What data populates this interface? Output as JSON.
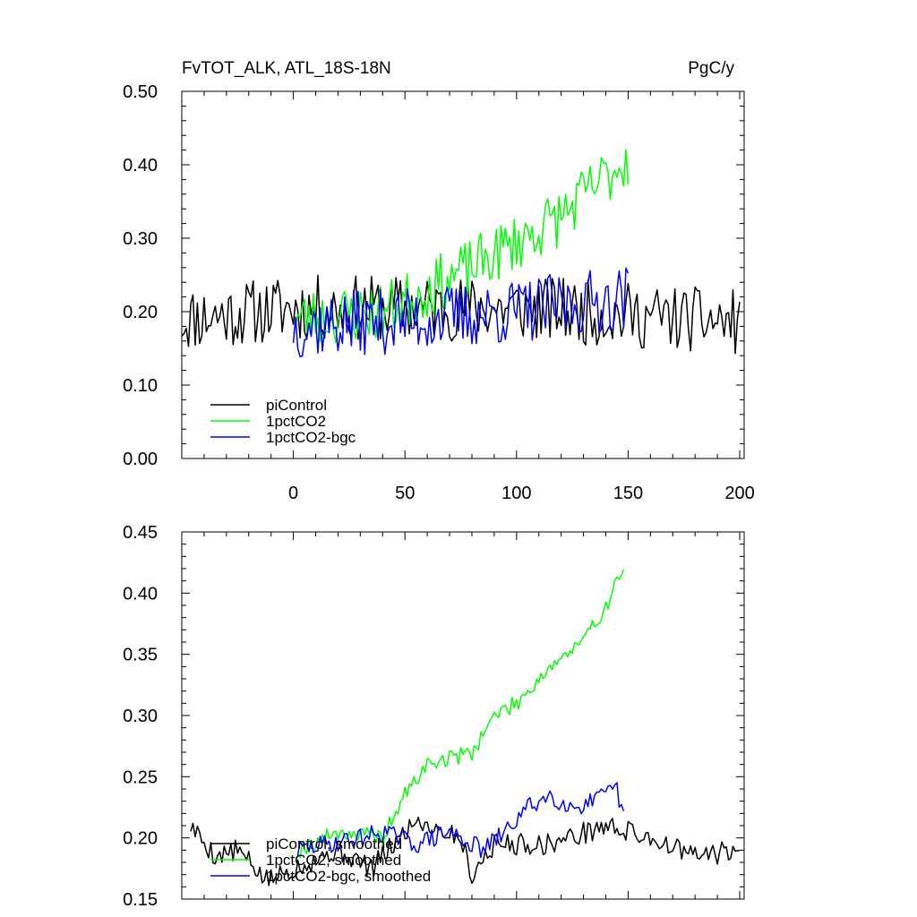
{
  "chart_data": [
    {
      "type": "line",
      "title": "FvTOT_ALK, ATL_18S-18N",
      "units": "PgC/y",
      "xlim": [
        -50,
        202
      ],
      "ylim": [
        0.0,
        0.5
      ],
      "x_ticks": [
        0,
        50,
        100,
        150,
        200
      ],
      "x_tick_labels": [
        "0",
        "50",
        "100",
        "150",
        "200"
      ],
      "y_ticks": [
        0.0,
        0.1,
        0.2,
        0.3,
        0.4,
        0.5
      ],
      "y_tick_labels": [
        "0.00",
        "0.10",
        "0.20",
        "0.30",
        "0.40",
        "0.50"
      ],
      "legend_placement": "bottom-left",
      "series": [
        {
          "name": "piControl",
          "color": "#000000",
          "x_start": -50,
          "x_end": 200,
          "seed": 11,
          "base": [
            [
              -50,
              0.19
            ],
            [
              0,
              0.205
            ],
            [
              100,
              0.205
            ],
            [
              200,
              0.185
            ]
          ],
          "noise": 0.045
        },
        {
          "name": "1pctCO2",
          "color": "#00ff00",
          "x_start": 0,
          "x_end": 150,
          "seed": 23,
          "base": [
            [
              0,
              0.19
            ],
            [
              40,
              0.2
            ],
            [
              80,
              0.26
            ],
            [
              120,
              0.33
            ],
            [
              150,
              0.41
            ]
          ],
          "noise": 0.04
        },
        {
          "name": "1pctCO2-bgc",
          "color": "#0000ff",
          "x_start": 0,
          "x_end": 150,
          "seed": 37,
          "base": [
            [
              0,
              0.18
            ],
            [
              60,
              0.19
            ],
            [
              100,
              0.2
            ],
            [
              150,
              0.22
            ]
          ],
          "noise": 0.045
        }
      ]
    },
    {
      "type": "line",
      "title": "",
      "xlim": [
        -50,
        202
      ],
      "ylim": [
        0.15,
        0.45
      ],
      "x_ticks": [
        0,
        50,
        100,
        150,
        200
      ],
      "y_ticks": [
        0.15,
        0.2,
        0.25,
        0.3,
        0.35,
        0.4,
        0.45
      ],
      "y_tick_labels": [
        "0.15",
        "0.20",
        "0.25",
        "0.30",
        "0.35",
        "0.40",
        "0.45"
      ],
      "legend_placement": "bottom-left",
      "series": [
        {
          "name": "piControl, smoothed",
          "color": "#000000",
          "x_start": -46,
          "x_end": 200,
          "seed": 5,
          "base": [
            [
              -46,
              0.21
            ],
            [
              -35,
              0.185
            ],
            [
              -25,
              0.19
            ],
            [
              -12,
              0.165
            ],
            [
              0,
              0.175
            ],
            [
              20,
              0.19
            ],
            [
              35,
              0.175
            ],
            [
              55,
              0.215
            ],
            [
              75,
              0.2
            ],
            [
              80,
              0.17
            ],
            [
              90,
              0.195
            ],
            [
              115,
              0.195
            ],
            [
              140,
              0.21
            ],
            [
              160,
              0.2
            ],
            [
              180,
              0.185
            ],
            [
              200,
              0.19
            ]
          ],
          "noise": 0.009
        },
        {
          "name": "1pctCO2, smoothed",
          "color": "#00ff00",
          "x_start": 2,
          "x_end": 148,
          "seed": 19,
          "base": [
            [
              2,
              0.19
            ],
            [
              20,
              0.205
            ],
            [
              40,
              0.2
            ],
            [
              50,
              0.235
            ],
            [
              60,
              0.26
            ],
            [
              70,
              0.265
            ],
            [
              80,
              0.27
            ],
            [
              90,
              0.3
            ],
            [
              100,
              0.31
            ],
            [
              115,
              0.34
            ],
            [
              130,
              0.36
            ],
            [
              140,
              0.39
            ],
            [
              148,
              0.42
            ]
          ],
          "noise": 0.007
        },
        {
          "name": "1pctCO2-bgc, smoothed",
          "color": "#0000ff",
          "x_start": 2,
          "x_end": 148,
          "seed": 29,
          "base": [
            [
              2,
              0.19
            ],
            [
              15,
              0.195
            ],
            [
              30,
              0.2
            ],
            [
              40,
              0.205
            ],
            [
              55,
              0.195
            ],
            [
              70,
              0.205
            ],
            [
              85,
              0.19
            ],
            [
              95,
              0.205
            ],
            [
              105,
              0.225
            ],
            [
              115,
              0.235
            ],
            [
              125,
              0.225
            ],
            [
              135,
              0.23
            ],
            [
              145,
              0.24
            ],
            [
              148,
              0.215
            ]
          ],
          "noise": 0.008
        }
      ]
    }
  ]
}
